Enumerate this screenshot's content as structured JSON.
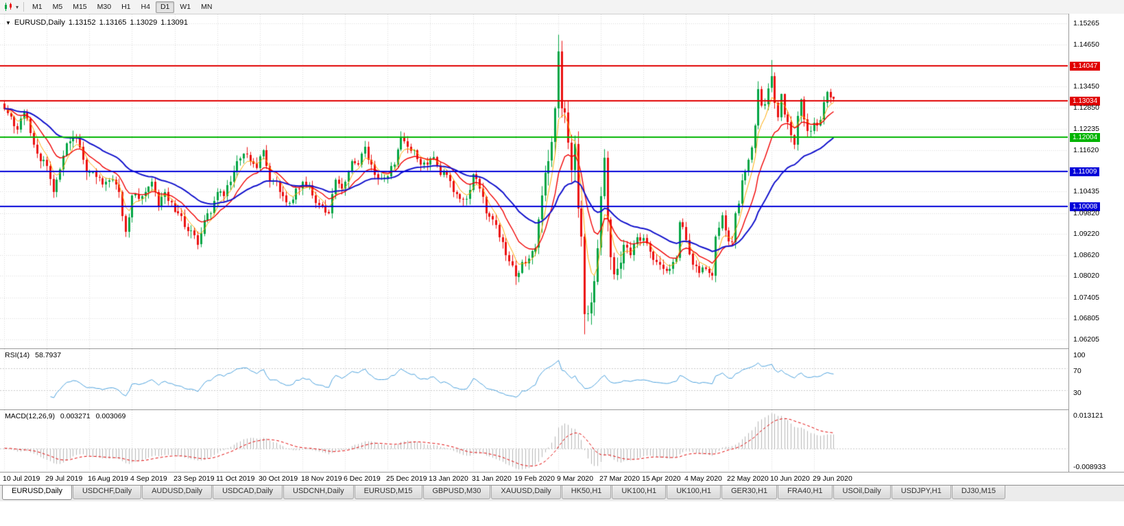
{
  "toolbar": {
    "timeframes": [
      "M1",
      "M5",
      "M15",
      "M30",
      "H1",
      "H4",
      "D1",
      "W1",
      "MN"
    ],
    "active_timeframe": "D1"
  },
  "chart": {
    "symbol_period": "EURUSD,Daily",
    "open": "1.13152",
    "high": "1.13165",
    "low": "1.13029",
    "close": "1.13091"
  },
  "rsi": {
    "label": "RSI(14)",
    "value": "58.7937",
    "axis_labels": [
      {
        "v": 100,
        "label": "100"
      },
      {
        "v": 70,
        "label": "70"
      },
      {
        "v": 30,
        "label": "30"
      }
    ],
    "level_lines": [
      70,
      30
    ]
  },
  "macd": {
    "label": "MACD(12,26,9)",
    "value_main": "0.003271",
    "value_signal": "0.003069",
    "axis_max": "0.013121",
    "axis_min": "-0.008933"
  },
  "tabs": [
    "EURUSD,Daily",
    "USDCHF,Daily",
    "AUDUSD,Daily",
    "USDCAD,Daily",
    "USDCNH,Daily",
    "EURUSD,M15",
    "GBPUSD,M30",
    "XAUUSD,Daily",
    "HK50,H1",
    "UK100,H1",
    "UK100,H1",
    "GER30,H1",
    "FRA40,H1",
    "USOil,Daily",
    "USDJPY,H1",
    "DJ30,M15"
  ],
  "active_tab_index": 0,
  "chart_data": {
    "type": "candlestick",
    "symbol": "EURUSD",
    "period": "Daily",
    "num_bars": 254,
    "y_range": [
      1.0592,
      1.1552
    ],
    "price_axis_ticks": [
      {
        "label": "1.15265"
      },
      {
        "label": "1.14650"
      },
      {
        "label": "1.14047",
        "line_color": "#e00000"
      },
      {
        "label": "1.13450"
      },
      {
        "label": "1.13034",
        "line_color": "#e00000"
      },
      {
        "label": "1.12850"
      },
      {
        "label": "1.12235"
      },
      {
        "label": "1.12004",
        "line_color": "#00b400"
      },
      {
        "label": "1.11620"
      },
      {
        "label": "1.11009",
        "line_color": "#0000d8"
      },
      {
        "label": "1.10435"
      },
      {
        "label": "1.10008",
        "line_color": "#0000d8"
      },
      {
        "label": "1.09820"
      },
      {
        "label": "1.09220"
      },
      {
        "label": "1.08620"
      },
      {
        "label": "1.08020"
      },
      {
        "label": "1.07405"
      },
      {
        "label": "1.06805"
      },
      {
        "label": "1.06205"
      }
    ],
    "x_labels": [
      {
        "d": 0,
        "t": "10 Jul 2019"
      },
      {
        "d": 13,
        "t": "29 Jul 2019"
      },
      {
        "d": 26,
        "t": "16 Aug 2019"
      },
      {
        "d": 39,
        "t": "4 Sep 2019"
      },
      {
        "d": 52,
        "t": "23 Sep 2019"
      },
      {
        "d": 65,
        "t": "11 Oct 2019"
      },
      {
        "d": 78,
        "t": "30 Oct 2019"
      },
      {
        "d": 91,
        "t": "18 Nov 2019"
      },
      {
        "d": 104,
        "t": "6 Dec 2019"
      },
      {
        "d": 117,
        "t": "25 Dec 2019"
      },
      {
        "d": 130,
        "t": "13 Jan 2020"
      },
      {
        "d": 143,
        "t": "31 Jan 2020"
      },
      {
        "d": 156,
        "t": "19 Feb 2020"
      },
      {
        "d": 169,
        "t": "9 Mar 2020"
      },
      {
        "d": 182,
        "t": "27 Mar 2020"
      },
      {
        "d": 195,
        "t": "15 Apr 2020"
      },
      {
        "d": 208,
        "t": "4 May 2020"
      },
      {
        "d": 221,
        "t": "22 May 2020"
      },
      {
        "d": 234,
        "t": "10 Jun 2020"
      },
      {
        "d": 247,
        "t": "29 Jun 2020"
      }
    ],
    "close_anchors": [
      [
        0,
        1.1282
      ],
      [
        2,
        1.1258
      ],
      [
        4,
        1.1222
      ],
      [
        6,
        1.1272
      ],
      [
        8,
        1.1212
      ],
      [
        10,
        1.1152
      ],
      [
        13,
        1.1118
      ],
      [
        15,
        1.1042
      ],
      [
        17,
        1.1108
      ],
      [
        19,
        1.1182
      ],
      [
        21,
        1.1202
      ],
      [
        23,
        1.1172
      ],
      [
        25,
        1.1098
      ],
      [
        28,
        1.1085
      ],
      [
        31,
        1.1072
      ],
      [
        33,
        1.1078
      ],
      [
        35,
        1.1042
      ],
      [
        37,
        1.0928
      ],
      [
        39,
        1.1032
      ],
      [
        41,
        1.1022
      ],
      [
        43,
        1.1042
      ],
      [
        45,
        1.1072
      ],
      [
        47,
        1.1002
      ],
      [
        49,
        1.1042
      ],
      [
        51,
        1.1012
      ],
      [
        53,
        1.0982
      ],
      [
        55,
        1.0942
      ],
      [
        57,
        1.0932
      ],
      [
        59,
        1.0892
      ],
      [
        61,
        1.0962
      ],
      [
        63,
        1.0982
      ],
      [
        65,
        1.1042
      ],
      [
        67,
        1.1032
      ],
      [
        69,
        1.1072
      ],
      [
        71,
        1.1132
      ],
      [
        73,
        1.1152
      ],
      [
        75,
        1.1132
      ],
      [
        77,
        1.1112
      ],
      [
        79,
        1.1162
      ],
      [
        81,
        1.1072
      ],
      [
        83,
        1.1072
      ],
      [
        85,
        1.1032
      ],
      [
        87,
        1.1012
      ],
      [
        89,
        1.1052
      ],
      [
        91,
        1.1072
      ],
      [
        93,
        1.1062
      ],
      [
        95,
        1.1012
      ],
      [
        97,
        1.1002
      ],
      [
        99,
        1.0982
      ],
      [
        101,
        1.1078
      ],
      [
        103,
        1.1052
      ],
      [
        106,
        1.1132
      ],
      [
        108,
        1.1122
      ],
      [
        110,
        1.1172
      ],
      [
        112,
        1.1122
      ],
      [
        114,
        1.1082
      ],
      [
        117,
        1.1088
      ],
      [
        119,
        1.1122
      ],
      [
        121,
        1.1202
      ],
      [
        123,
        1.1172
      ],
      [
        125,
        1.1162
      ],
      [
        127,
        1.1122
      ],
      [
        129,
        1.1122
      ],
      [
        131,
        1.1142
      ],
      [
        133,
        1.1092
      ],
      [
        135,
        1.1092
      ],
      [
        137,
        1.1042
      ],
      [
        139,
        1.1022
      ],
      [
        141,
        1.1022
      ],
      [
        143,
        1.1093
      ],
      [
        145,
        1.1052
      ],
      [
        147,
        1.0982
      ],
      [
        149,
        1.0962
      ],
      [
        151,
        1.0912
      ],
      [
        153,
        1.0862
      ],
      [
        155,
        1.0832
      ],
      [
        156,
        1.08
      ],
      [
        158,
        1.0842
      ],
      [
        160,
        1.0852
      ],
      [
        162,
        1.0882
      ],
      [
        164,
        1.1032
      ],
      [
        166,
        1.1132
      ],
      [
        168,
        1.1282
      ],
      [
        169,
        1.1446
      ],
      [
        170,
        1.1282
      ],
      [
        171,
        1.1271
      ],
      [
        172,
        1.1184
      ],
      [
        173,
        1.1106
      ],
      [
        174,
        1.118
      ],
      [
        175,
        1.0995
      ],
      [
        176,
        1.0914
      ],
      [
        177,
        1.0692
      ],
      [
        178,
        1.0694
      ],
      [
        179,
        1.0726
      ],
      [
        180,
        1.0786
      ],
      [
        181,
        1.0882
      ],
      [
        182,
        1.103
      ],
      [
        183,
        1.1141
      ],
      [
        184,
        1.0964
      ],
      [
        185,
        1.0855
      ],
      [
        186,
        1.0805
      ],
      [
        187,
        1.0822
      ],
      [
        189,
        1.0892
      ],
      [
        191,
        1.0862
      ],
      [
        193,
        1.0912
      ],
      [
        195,
        1.091
      ],
      [
        197,
        1.0872
      ],
      [
        199,
        1.0842
      ],
      [
        201,
        1.0822
      ],
      [
        203,
        1.0822
      ],
      [
        205,
        1.0852
      ],
      [
        206,
        1.0955
      ],
      [
        208,
        1.0905
      ],
      [
        210,
        1.0834
      ],
      [
        212,
        1.0812
      ],
      [
        214,
        1.0822
      ],
      [
        216,
        1.0802
      ],
      [
        217,
        1.0915
      ],
      [
        219,
        1.0976
      ],
      [
        221,
        1.09
      ],
      [
        222,
        1.0899
      ],
      [
        223,
        1.0982
      ],
      [
        224,
        1.1009
      ],
      [
        225,
        1.1076
      ],
      [
        226,
        1.1101
      ],
      [
        227,
        1.1134
      ],
      [
        228,
        1.117
      ],
      [
        229,
        1.1234
      ],
      [
        230,
        1.1338
      ],
      [
        231,
        1.129
      ],
      [
        232,
        1.1294
      ],
      [
        233,
        1.134
      ],
      [
        234,
        1.1374
      ],
      [
        235,
        1.1298
      ],
      [
        236,
        1.1256
      ],
      [
        237,
        1.1323
      ],
      [
        238,
        1.1264
      ],
      [
        239,
        1.1243
      ],
      [
        240,
        1.1205
      ],
      [
        241,
        1.1177
      ],
      [
        242,
        1.126
      ],
      [
        243,
        1.1308
      ],
      [
        244,
        1.1251
      ],
      [
        245,
        1.1218
      ],
      [
        246,
        1.1218
      ],
      [
        247,
        1.1242
      ],
      [
        248,
        1.1234
      ],
      [
        249,
        1.125
      ],
      [
        251,
        1.133
      ],
      [
        252,
        1.13152
      ],
      [
        253,
        1.13091
      ]
    ],
    "wick_overrides": {
      "15": {
        "l": 1.1027
      },
      "59": {
        "l": 1.0879
      },
      "156": {
        "l": 1.0777
      },
      "169": {
        "h": 1.1495
      },
      "177": {
        "l": 1.0636
      },
      "230": {
        "h": 1.1362
      },
      "234": {
        "h": 1.1422
      },
      "253": {
        "h": 1.13165,
        "l": 1.13029
      }
    },
    "colors": {
      "up": "#00a443",
      "down": "#ec0f0f",
      "ma_fast": "#ffa800",
      "ma_medium": "#f00000",
      "ma_slow": "#1212cc",
      "rsi": "#4aa0dc",
      "macd_hist": "#b4b4b4",
      "macd_signal": "#e00000",
      "grid": "#d8d8d8"
    }
  }
}
